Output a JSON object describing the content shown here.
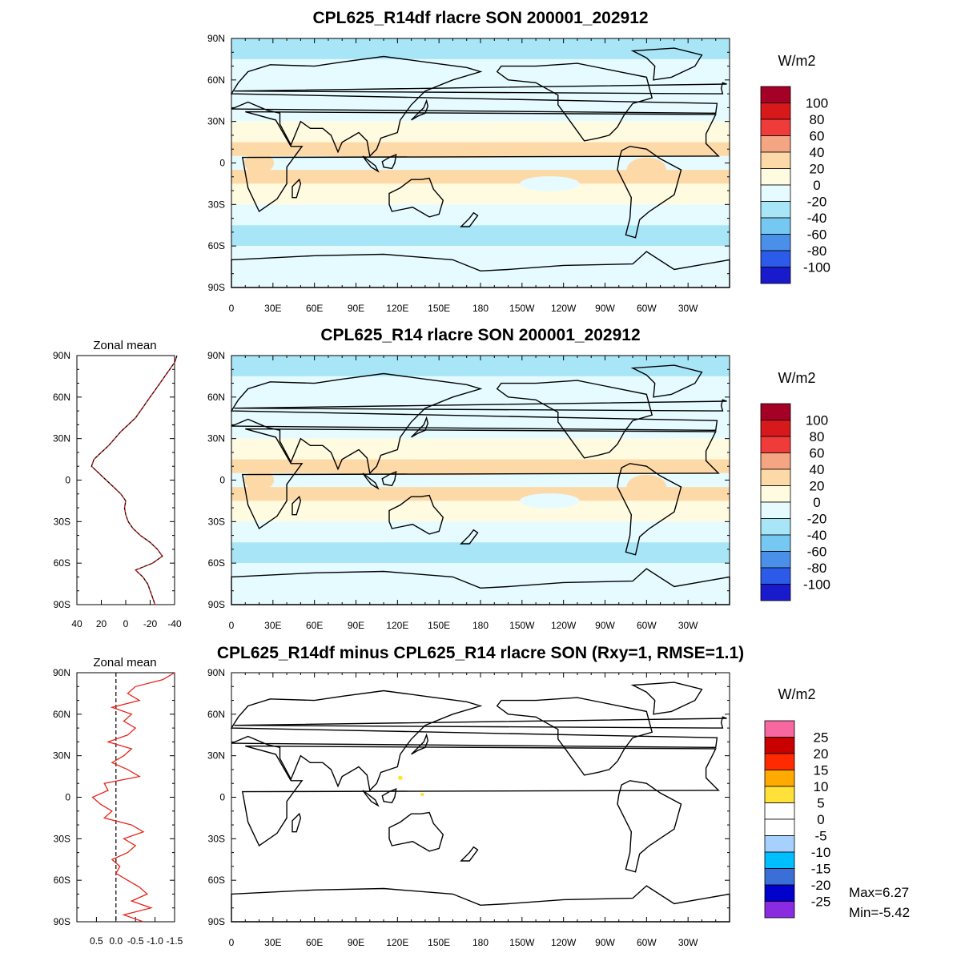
{
  "figure": {
    "colors": {
      "land_outline": "#000000",
      "zonal_line_model": "#000000",
      "zonal_line_ref": "#e8231c",
      "diff_zonal_line": "#e8231c"
    }
  },
  "panels": [
    {
      "id": "top",
      "title": "CPL625_R14df rlacre SON 200001_202912",
      "units": "W/m2",
      "has_zonal_mean": false
    },
    {
      "id": "middle",
      "title": "CPL625_R14 rlacre SON 200001_202912",
      "units": "W/m2",
      "has_zonal_mean": true,
      "zonal_title": "Zonal mean"
    },
    {
      "id": "bottom",
      "title": "CPL625_R14df minus CPL625_R14 rlacre SON (Rxy=1, RMSE=1.1)",
      "units": "W/m2",
      "has_zonal_mean": true,
      "zonal_title": "Zonal mean",
      "stats": {
        "max": "Max=6.27",
        "min": "Min=-5.42"
      }
    }
  ],
  "axes": {
    "lat_ticks": [
      "90N",
      "60N",
      "30N",
      "0",
      "30S",
      "60S",
      "90S"
    ],
    "lon_ticks": [
      "0",
      "30E",
      "60E",
      "90E",
      "120E",
      "150E",
      "180",
      "150W",
      "120W",
      "90W",
      "60W",
      "30W"
    ],
    "zonal_mid_ticks": [
      "40",
      "20",
      "0",
      "-20",
      "-40"
    ],
    "zonal_diff_ticks": [
      "0.5",
      "0.0",
      "-0.5",
      "-1.0",
      "-1.5"
    ]
  },
  "colorbars": {
    "main": {
      "labels": [
        "100",
        "80",
        "60",
        "40",
        "20",
        "0",
        "-20",
        "-40",
        "-60",
        "-80",
        "-100"
      ],
      "colors": [
        "#a50026",
        "#d7191c",
        "#f03b3b",
        "#f4a582",
        "#fdd9a8",
        "#fffbe0",
        "#e6fbff",
        "#a8e6f7",
        "#74c8f1",
        "#4a90e8",
        "#2b5be8",
        "#1a1acd"
      ]
    },
    "diff": {
      "labels": [
        "25",
        "20",
        "15",
        "10",
        "5",
        "0",
        "-5",
        "-10",
        "-15",
        "-20",
        "-25"
      ],
      "colors": [
        "#f768a1",
        "#c80000",
        "#ff2a00",
        "#ffaa00",
        "#ffe13a",
        "#ffffff",
        "#ffffff",
        "#a6d1ff",
        "#00bfff",
        "#3a6fd8",
        "#0000cd",
        "#8a2be2"
      ]
    }
  },
  "chart_data": [
    {
      "type": "heatmap",
      "title": "CPL625_R14df rlacre SON 200001_202912",
      "units": "W/m2",
      "x_ticks": [
        "0",
        "30E",
        "60E",
        "90E",
        "120E",
        "150E",
        "180",
        "150W",
        "120W",
        "90W",
        "60W",
        "30W"
      ],
      "y_ticks": [
        "90N",
        "60N",
        "30N",
        "0",
        "30S",
        "60S",
        "90S"
      ],
      "color_levels": [
        100,
        80,
        60,
        40,
        20,
        0,
        -20,
        -40,
        -60,
        -80,
        -100
      ]
    },
    {
      "type": "heatmap",
      "title": "CPL625_R14 rlacre SON 200001_202912",
      "units": "W/m2",
      "x_ticks": [
        "0",
        "30E",
        "60E",
        "90E",
        "120E",
        "150E",
        "180",
        "150W",
        "120W",
        "90W",
        "60W",
        "30W"
      ],
      "y_ticks": [
        "90N",
        "60N",
        "30N",
        "0",
        "30S",
        "60S",
        "90S"
      ],
      "color_levels": [
        100,
        80,
        60,
        40,
        20,
        0,
        -20,
        -40,
        -60,
        -80,
        -100
      ]
    },
    {
      "type": "line",
      "title": "Zonal mean",
      "xlim": [
        40,
        -40
      ],
      "ylim": [
        -90,
        90
      ],
      "series": [
        {
          "lat": [
            -90,
            -85,
            -80,
            -75,
            -70,
            -65,
            -60,
            -55,
            -50,
            -45,
            -40,
            -35,
            -30,
            -25,
            -20,
            -15,
            -10,
            -5,
            0,
            5,
            10,
            15,
            20,
            25,
            30,
            35,
            40,
            45,
            50,
            55,
            60,
            65,
            70,
            75,
            80,
            85,
            90
          ],
          "value": [
            -24,
            -22,
            -20,
            -18,
            -14,
            -8,
            -22,
            -30,
            -26,
            -20,
            -12,
            -6,
            -2,
            0,
            1,
            0,
            4,
            10,
            16,
            22,
            28,
            26,
            20,
            14,
            9,
            4,
            -2,
            -8,
            -12,
            -16,
            -20,
            -24,
            -28,
            -32,
            -36,
            -40,
            -42
          ]
        }
      ]
    },
    {
      "type": "heatmap",
      "title": "CPL625_R14df minus CPL625_R14 rlacre SON (Rxy=1, RMSE=1.1)",
      "units": "W/m2",
      "x_ticks": [
        "0",
        "30E",
        "60E",
        "90E",
        "120E",
        "150E",
        "180",
        "150W",
        "120W",
        "90W",
        "60W",
        "30W"
      ],
      "y_ticks": [
        "90N",
        "60N",
        "30N",
        "0",
        "30S",
        "60S",
        "90S"
      ],
      "color_levels": [
        25,
        20,
        15,
        10,
        5,
        0,
        -5,
        -10,
        -15,
        -20,
        -25
      ]
    },
    {
      "type": "line",
      "title": "Zonal mean",
      "xlim": [
        1.0,
        -1.5
      ],
      "ylim": [
        -90,
        90
      ],
      "series": [
        {
          "lat": [
            -90,
            -85,
            -80,
            -75,
            -70,
            -65,
            -60,
            -55,
            -50,
            -45,
            -40,
            -35,
            -30,
            -25,
            -20,
            -15,
            -10,
            -5,
            0,
            5,
            10,
            15,
            20,
            25,
            30,
            35,
            40,
            45,
            50,
            55,
            60,
            65,
            70,
            75,
            80,
            85,
            90
          ],
          "value": [
            -0.7,
            -0.2,
            -0.9,
            -0.4,
            -0.8,
            -0.6,
            -0.3,
            0.0,
            -0.1,
            0.1,
            -0.3,
            -0.5,
            -0.2,
            -0.7,
            -0.4,
            0.3,
            0.1,
            0.4,
            0.6,
            0.2,
            0.3,
            -0.6,
            -0.3,
            0.1,
            -0.2,
            -0.4,
            0.2,
            -0.3,
            -0.5,
            -0.2,
            -0.4,
            0.1,
            -0.6,
            -0.3,
            -0.5,
            -1.2,
            -1.5
          ]
        }
      ]
    }
  ]
}
